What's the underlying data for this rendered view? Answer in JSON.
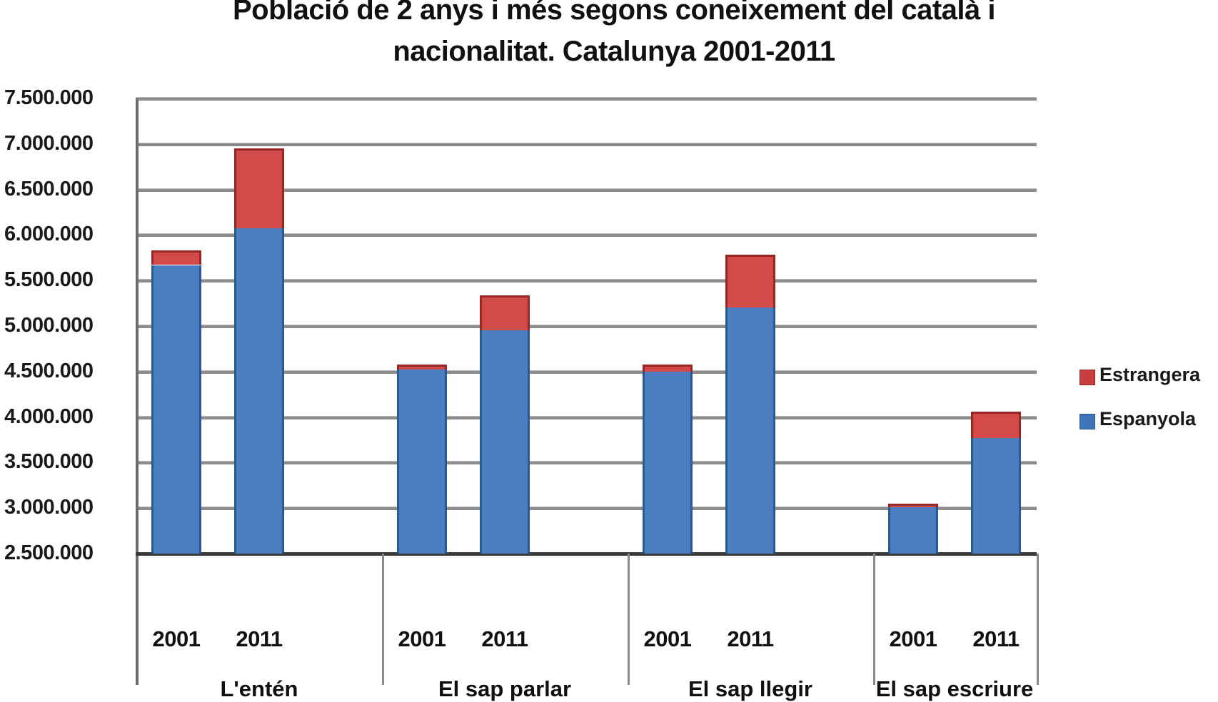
{
  "title": {
    "line1": "Població de 2 anys i més segons coneixement del català i",
    "line2": "nacionalitat. Catalunya 2001-2011"
  },
  "y_axis": {
    "ticks": [
      "7.500.000",
      "7.000.000",
      "6.500.000",
      "6.000.000",
      "5.500.000",
      "5.000.000",
      "4.500.000",
      "4.000.000",
      "3.500.000",
      "3.000.000",
      "2.500.000"
    ]
  },
  "legend": {
    "items": [
      {
        "label": "Estrangera",
        "color": "#c0504d"
      },
      {
        "label": "Espanyola",
        "color": "#4f81bd"
      }
    ]
  },
  "groups": [
    {
      "name": "L'entén",
      "years": [
        "2001",
        "2011"
      ]
    },
    {
      "name": "El sap parlar",
      "years": [
        "2001",
        "2011"
      ]
    },
    {
      "name": "El sap llegir",
      "years": [
        "2001",
        "2011"
      ]
    },
    {
      "name": "El sap escriure",
      "years": [
        "2001",
        "2011"
      ]
    }
  ],
  "chart_data": {
    "type": "bar",
    "stacked": true,
    "title": "Població de 2 anys i més segons coneixement del català i nacionalitat. Catalunya 2001-2011",
    "xlabel": "",
    "ylabel": "",
    "ylim": [
      2500000,
      7500000
    ],
    "grid": true,
    "legend_position": "right",
    "categories": [
      "L'entén 2001",
      "L'entén 2011",
      "El sap parlar 2001",
      "El sap parlar 2011",
      "El sap llegir 2001",
      "El sap llegir 2011",
      "El sap escriure 2001",
      "El sap escriure 2011"
    ],
    "group_labels": [
      "L'entén",
      "El sap parlar",
      "El sap llegir",
      "El sap escriure"
    ],
    "sub_labels": [
      "2001",
      "2011"
    ],
    "series": [
      {
        "name": "Espanyola",
        "color": "#4f81bd",
        "values": [
          5670000,
          6070000,
          4520000,
          4950000,
          4500000,
          5200000,
          3010000,
          3770000
        ]
      },
      {
        "name": "Estrangera",
        "color": "#c0504d",
        "values": [
          160000,
          880000,
          60000,
          390000,
          80000,
          580000,
          40000,
          290000
        ]
      }
    ],
    "totals": [
      5830000,
      6950000,
      4580000,
      5340000,
      4580000,
      5780000,
      3050000,
      4060000
    ]
  }
}
